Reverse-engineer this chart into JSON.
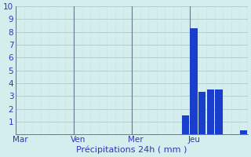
{
  "title": "",
  "xlabel": "Précipitations 24h ( mm )",
  "ylabel": "",
  "background_color": "#d4eeed",
  "bar_color": "#1a3ecc",
  "grid_color_major": "#a8c8c8",
  "grid_color_minor": "#c8dede",
  "tick_label_color": "#3333bb",
  "xlabel_color": "#3333bb",
  "ylim": [
    0,
    10
  ],
  "yticks": [
    1,
    2,
    3,
    4,
    5,
    6,
    7,
    8,
    9,
    10
  ],
  "num_bars": 28,
  "bar_values": [
    0,
    0,
    0,
    0,
    0,
    0,
    0,
    0,
    0,
    0,
    0,
    0,
    0,
    0,
    0,
    0,
    0,
    0,
    0,
    0,
    1.5,
    8.3,
    3.3,
    3.5,
    3.5,
    0,
    0,
    0.3
  ],
  "xtick_positions": [
    0.5,
    7.5,
    14.5,
    21.5
  ],
  "xtick_labels": [
    "Mar",
    "Ven",
    "Mer",
    "Jeu"
  ],
  "vline_positions": [
    0,
    7,
    14,
    21,
    28
  ],
  "vline_color": "#667788",
  "spine_color": "#667788",
  "xlabel_fontsize": 8,
  "tick_fontsize": 7.5
}
